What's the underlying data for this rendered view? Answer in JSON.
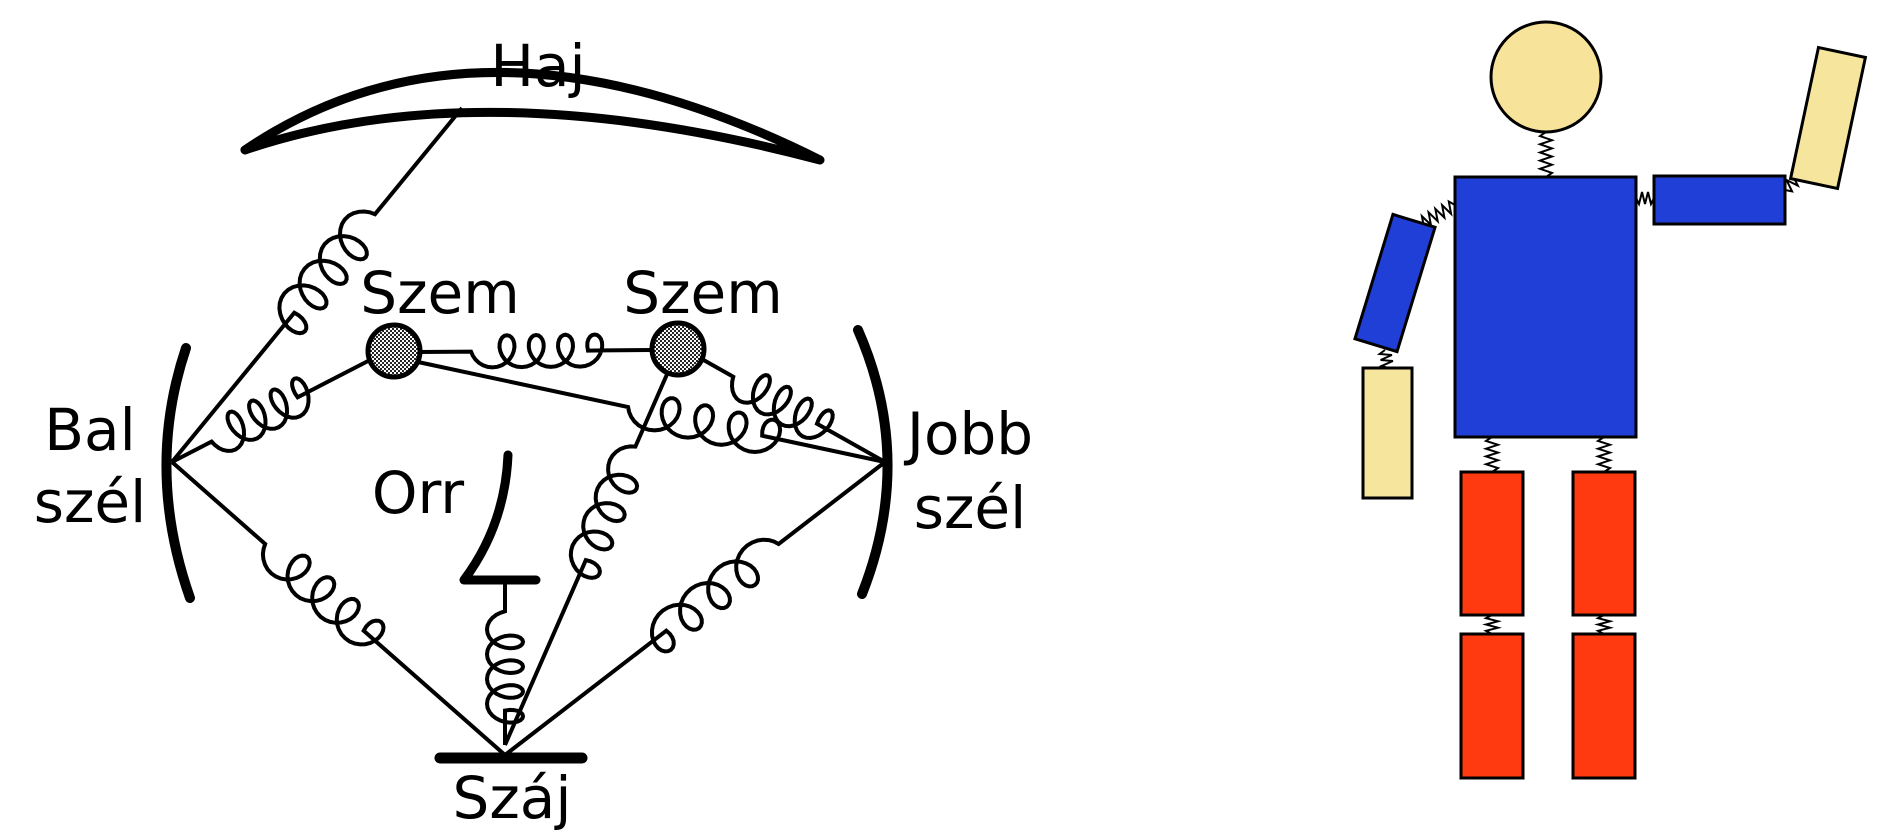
{
  "face_diagram": {
    "hair": "Haj",
    "eye_left": "Szem",
    "eye_right": "Szem",
    "left_edge_line1": "Bal",
    "left_edge_line2": "szél",
    "right_edge_line1": "Jobb",
    "right_edge_line2": "szél",
    "nose": "Orr",
    "mouth": "Száj"
  },
  "figure": {
    "colors": {
      "head": "#f8e39a",
      "torso": "#1f3fd6",
      "arm": "#1f3fd6",
      "hand": "#f6e59c",
      "leg": "#ff3a10"
    }
  }
}
